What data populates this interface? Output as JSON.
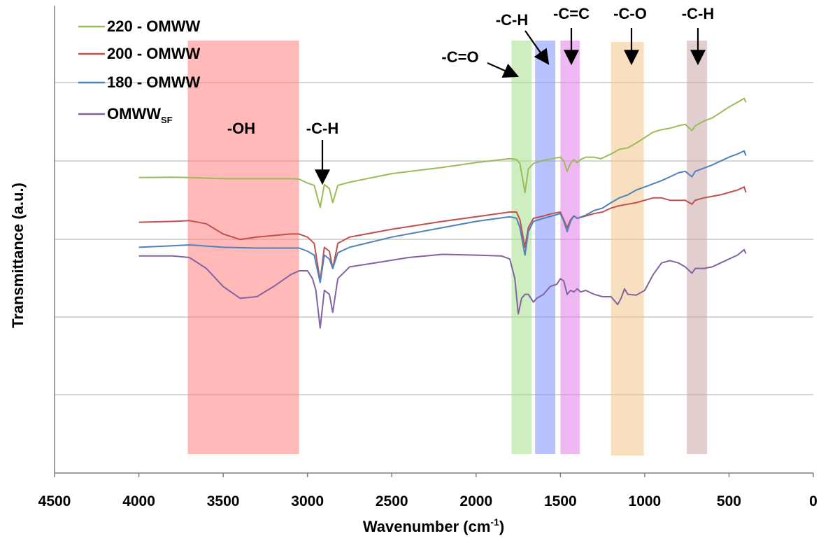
{
  "chart_data": {
    "type": "line",
    "title": "",
    "xlabel": "Wavenumber (cm",
    "xlabel_sup": "-1",
    "xlabel_tail": ")",
    "ylabel": "Transmittance (a.u.)",
    "xlim": [
      4500,
      0
    ],
    "x_reversed": true,
    "x_ticks": [
      "4500",
      "4000",
      "3500",
      "3000",
      "2500",
      "2000",
      "1500",
      "1000",
      "500",
      "0"
    ],
    "grid": "horizontal",
    "legend_position": "top-left",
    "series": [
      {
        "name": "220 - OMWW",
        "color": "#9bbb59",
        "points": [
          [
            4000,
            0.94
          ],
          [
            3800,
            0.945
          ],
          [
            3700,
            0.94
          ],
          [
            3500,
            0.925
          ],
          [
            3300,
            0.925
          ],
          [
            3100,
            0.925
          ],
          [
            3050,
            0.92
          ],
          [
            3000,
            0.87
          ],
          [
            2960,
            0.84
          ],
          [
            2925,
            0.56
          ],
          [
            2900,
            0.85
          ],
          [
            2870,
            0.8
          ],
          [
            2850,
            0.62
          ],
          [
            2820,
            0.84
          ],
          [
            2750,
            0.88
          ],
          [
            2500,
            0.99
          ],
          [
            2200,
            1.07
          ],
          [
            2000,
            1.13
          ],
          [
            1800,
            1.18
          ],
          [
            1760,
            1.17
          ],
          [
            1740,
            1.12
          ],
          [
            1710,
            0.75
          ],
          [
            1690,
            1.05
          ],
          [
            1660,
            1.12
          ],
          [
            1600,
            1.16
          ],
          [
            1550,
            1.18
          ],
          [
            1500,
            1.2
          ],
          [
            1480,
            1.15
          ],
          [
            1460,
            1.02
          ],
          [
            1440,
            1.12
          ],
          [
            1420,
            1.17
          ],
          [
            1400,
            1.13
          ],
          [
            1380,
            1.17
          ],
          [
            1350,
            1.2
          ],
          [
            1300,
            1.2
          ],
          [
            1260,
            1.18
          ],
          [
            1200,
            1.24
          ],
          [
            1150,
            1.3
          ],
          [
            1100,
            1.32
          ],
          [
            1050,
            1.38
          ],
          [
            1000,
            1.45
          ],
          [
            950,
            1.52
          ],
          [
            900,
            1.55
          ],
          [
            850,
            1.57
          ],
          [
            800,
            1.6
          ],
          [
            760,
            1.62
          ],
          [
            720,
            1.54
          ],
          [
            700,
            1.6
          ],
          [
            650,
            1.66
          ],
          [
            600,
            1.7
          ],
          [
            550,
            1.77
          ],
          [
            500,
            1.84
          ],
          [
            450,
            1.9
          ],
          [
            410,
            1.95
          ],
          [
            400,
            1.9
          ]
        ]
      },
      {
        "name": "200 - OMWW",
        "color": "#c0504d",
        "points": [
          [
            4000,
            0.37
          ],
          [
            3800,
            0.38
          ],
          [
            3700,
            0.39
          ],
          [
            3600,
            0.35
          ],
          [
            3500,
            0.22
          ],
          [
            3400,
            0.15
          ],
          [
            3300,
            0.18
          ],
          [
            3100,
            0.22
          ],
          [
            3050,
            0.22
          ],
          [
            3000,
            0.18
          ],
          [
            2960,
            0.1
          ],
          [
            2925,
            -0.38
          ],
          [
            2900,
            0.05
          ],
          [
            2870,
            0.0
          ],
          [
            2850,
            -0.22
          ],
          [
            2820,
            0.1
          ],
          [
            2750,
            0.18
          ],
          [
            2500,
            0.28
          ],
          [
            2200,
            0.38
          ],
          [
            2000,
            0.44
          ],
          [
            1800,
            0.5
          ],
          [
            1760,
            0.5
          ],
          [
            1740,
            0.4
          ],
          [
            1710,
            0.05
          ],
          [
            1690,
            0.3
          ],
          [
            1660,
            0.42
          ],
          [
            1600,
            0.45
          ],
          [
            1550,
            0.48
          ],
          [
            1500,
            0.5
          ],
          [
            1480,
            0.4
          ],
          [
            1460,
            0.3
          ],
          [
            1440,
            0.4
          ],
          [
            1420,
            0.45
          ],
          [
            1400,
            0.42
          ],
          [
            1350,
            0.45
          ],
          [
            1300,
            0.48
          ],
          [
            1250,
            0.5
          ],
          [
            1200,
            0.55
          ],
          [
            1150,
            0.58
          ],
          [
            1100,
            0.6
          ],
          [
            1050,
            0.62
          ],
          [
            1000,
            0.65
          ],
          [
            950,
            0.68
          ],
          [
            900,
            0.68
          ],
          [
            850,
            0.65
          ],
          [
            800,
            0.65
          ],
          [
            760,
            0.65
          ],
          [
            720,
            0.6
          ],
          [
            700,
            0.65
          ],
          [
            650,
            0.68
          ],
          [
            600,
            0.7
          ],
          [
            550,
            0.72
          ],
          [
            500,
            0.75
          ],
          [
            450,
            0.78
          ],
          [
            410,
            0.82
          ],
          [
            400,
            0.75
          ]
        ]
      },
      {
        "name": "180 - OMWW",
        "color": "#4f81bd",
        "points": [
          [
            4000,
            0.05
          ],
          [
            3800,
            0.07
          ],
          [
            3700,
            0.08
          ],
          [
            3500,
            0.05
          ],
          [
            3300,
            0.04
          ],
          [
            3100,
            0.04
          ],
          [
            3050,
            0.04
          ],
          [
            3000,
            0.0
          ],
          [
            2960,
            -0.05
          ],
          [
            2925,
            -0.4
          ],
          [
            2900,
            -0.05
          ],
          [
            2870,
            -0.1
          ],
          [
            2850,
            -0.22
          ],
          [
            2820,
            -0.02
          ],
          [
            2750,
            0.05
          ],
          [
            2500,
            0.18
          ],
          [
            2200,
            0.3
          ],
          [
            2000,
            0.38
          ],
          [
            1800,
            0.44
          ],
          [
            1760,
            0.42
          ],
          [
            1740,
            0.3
          ],
          [
            1710,
            -0.05
          ],
          [
            1690,
            0.25
          ],
          [
            1660,
            0.38
          ],
          [
            1600,
            0.42
          ],
          [
            1550,
            0.45
          ],
          [
            1500,
            0.48
          ],
          [
            1480,
            0.38
          ],
          [
            1460,
            0.25
          ],
          [
            1440,
            0.38
          ],
          [
            1420,
            0.45
          ],
          [
            1400,
            0.42
          ],
          [
            1350,
            0.46
          ],
          [
            1300,
            0.52
          ],
          [
            1250,
            0.55
          ],
          [
            1200,
            0.62
          ],
          [
            1150,
            0.68
          ],
          [
            1100,
            0.72
          ],
          [
            1050,
            0.78
          ],
          [
            1000,
            0.82
          ],
          [
            950,
            0.86
          ],
          [
            900,
            0.9
          ],
          [
            850,
            0.95
          ],
          [
            800,
            1.0
          ],
          [
            760,
            1.02
          ],
          [
            720,
            0.95
          ],
          [
            700,
            1.02
          ],
          [
            650,
            1.06
          ],
          [
            600,
            1.1
          ],
          [
            550,
            1.15
          ],
          [
            500,
            1.2
          ],
          [
            450,
            1.24
          ],
          [
            410,
            1.28
          ],
          [
            400,
            1.22
          ]
        ]
      },
      {
        "name": "OMWW",
        "name_sub": "SF",
        "color": "#8064a2",
        "points": [
          [
            4000,
            -0.06
          ],
          [
            3800,
            -0.06
          ],
          [
            3700,
            -0.08
          ],
          [
            3600,
            -0.22
          ],
          [
            3500,
            -0.45
          ],
          [
            3400,
            -0.6
          ],
          [
            3300,
            -0.58
          ],
          [
            3200,
            -0.45
          ],
          [
            3100,
            -0.3
          ],
          [
            3050,
            -0.25
          ],
          [
            3000,
            -0.25
          ],
          [
            2970,
            -0.35
          ],
          [
            2950,
            -0.5
          ],
          [
            2925,
            -0.98
          ],
          [
            2900,
            -0.5
          ],
          [
            2870,
            -0.55
          ],
          [
            2850,
            -0.78
          ],
          [
            2820,
            -0.35
          ],
          [
            2750,
            -0.2
          ],
          [
            2600,
            -0.15
          ],
          [
            2400,
            -0.08
          ],
          [
            2200,
            -0.04
          ],
          [
            2000,
            -0.05
          ],
          [
            1850,
            -0.06
          ],
          [
            1800,
            -0.1
          ],
          [
            1770,
            -0.35
          ],
          [
            1750,
            -0.8
          ],
          [
            1730,
            -0.6
          ],
          [
            1710,
            -0.55
          ],
          [
            1690,
            -0.55
          ],
          [
            1660,
            -0.65
          ],
          [
            1640,
            -0.6
          ],
          [
            1600,
            -0.55
          ],
          [
            1560,
            -0.45
          ],
          [
            1520,
            -0.42
          ],
          [
            1500,
            -0.35
          ],
          [
            1480,
            -0.38
          ],
          [
            1460,
            -0.55
          ],
          [
            1440,
            -0.5
          ],
          [
            1420,
            -0.52
          ],
          [
            1400,
            -0.48
          ],
          [
            1380,
            -0.52
          ],
          [
            1350,
            -0.5
          ],
          [
            1300,
            -0.55
          ],
          [
            1250,
            -0.58
          ],
          [
            1200,
            -0.58
          ],
          [
            1160,
            -0.68
          ],
          [
            1140,
            -0.6
          ],
          [
            1120,
            -0.48
          ],
          [
            1100,
            -0.55
          ],
          [
            1050,
            -0.56
          ],
          [
            1000,
            -0.5
          ],
          [
            950,
            -0.3
          ],
          [
            900,
            -0.15
          ],
          [
            850,
            -0.12
          ],
          [
            800,
            -0.15
          ],
          [
            760,
            -0.2
          ],
          [
            720,
            -0.28
          ],
          [
            700,
            -0.22
          ],
          [
            650,
            -0.22
          ],
          [
            600,
            -0.2
          ],
          [
            550,
            -0.15
          ],
          [
            500,
            -0.1
          ],
          [
            450,
            -0.05
          ],
          [
            410,
            0.02
          ],
          [
            400,
            -0.03
          ]
        ]
      }
    ],
    "bands": [
      {
        "label": "-OH",
        "x_from": 3710,
        "x_to": 3050,
        "color": "#ff8080"
      },
      {
        "label": "-C=O",
        "x_from": 1790,
        "x_to": 1670,
        "color": "#a6e08c"
      },
      {
        "label": "-C-H",
        "x_from": 1650,
        "x_to": 1530,
        "color": "#7b8fff"
      },
      {
        "label": "-C=C",
        "x_from": 1500,
        "x_to": 1385,
        "color": "#e080e8"
      },
      {
        "label": "-C-O",
        "x_from": 1200,
        "x_to": 1005,
        "color": "#f2c48c"
      },
      {
        "label": "-C-H",
        "x_from": 750,
        "x_to": 630,
        "color": "#c8a8a8"
      }
    ],
    "annotations": [
      {
        "label": "-C-H",
        "x": 2920
      }
    ]
  }
}
